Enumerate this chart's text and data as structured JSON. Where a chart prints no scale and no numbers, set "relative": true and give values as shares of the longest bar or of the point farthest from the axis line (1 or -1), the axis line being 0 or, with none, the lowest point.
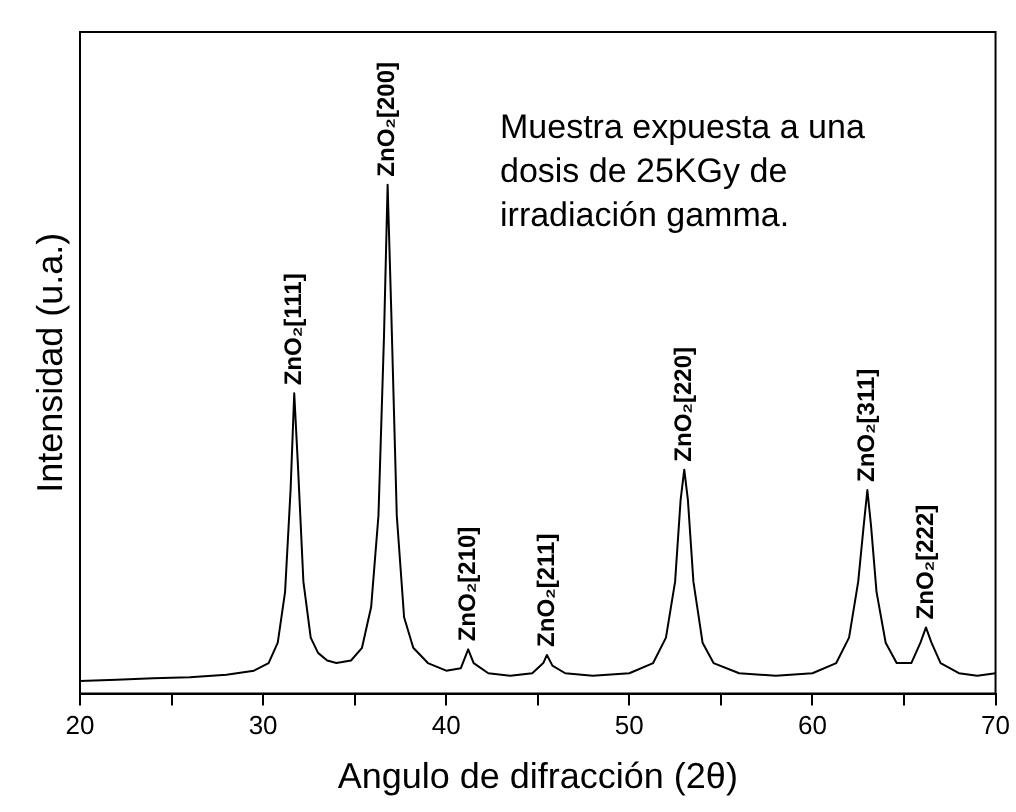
{
  "chart_data": {
    "type": "line",
    "relative": true,
    "xlabel": "Angulo de difracción (2θ)",
    "ylabel": "Intensidad (u.a.)",
    "xlim": [
      20,
      70
    ],
    "xticks": [
      20,
      {
        "value": 25,
        "label": null
      },
      30,
      {
        "value": 35,
        "label": null
      },
      40,
      {
        "value": 45,
        "label": null
      },
      50,
      {
        "value": 55,
        "label": null
      },
      60,
      {
        "value": 65,
        "label": null
      },
      70
    ],
    "grid": false,
    "legend": false,
    "marker": "none",
    "line_style": "solid",
    "series": [
      {
        "color": "#000000",
        "x": [
          20,
          22,
          24,
          26,
          28,
          29.5,
          30.3,
          30.8,
          31.2,
          31.5,
          31.7,
          31.9,
          32.2,
          32.6,
          33,
          33.5,
          34,
          34.8,
          35.4,
          35.9,
          36.3,
          36.6,
          36.8,
          37.0,
          37.3,
          37.7,
          38.2,
          39,
          40,
          40.8,
          41.2,
          41.5,
          42.3,
          43.5,
          44.7,
          45.3,
          45.5,
          45.8,
          46.5,
          48,
          50,
          51.3,
          52,
          52.5,
          52.8,
          53.0,
          53.2,
          53.5,
          54,
          54.6,
          56,
          58,
          60,
          61.3,
          62,
          62.5,
          62.8,
          63.0,
          63.2,
          63.5,
          64,
          64.6,
          65.4,
          65.9,
          66.2,
          66.5,
          67,
          68,
          69,
          70
        ],
        "values": [
          0.025,
          0.027,
          0.03,
          0.032,
          0.037,
          0.045,
          0.06,
          0.1,
          0.2,
          0.4,
          0.59,
          0.45,
          0.22,
          0.11,
          0.08,
          0.065,
          0.06,
          0.065,
          0.09,
          0.17,
          0.35,
          0.7,
          1,
          0.75,
          0.35,
          0.15,
          0.09,
          0.06,
          0.045,
          0.05,
          0.087,
          0.06,
          0.04,
          0.035,
          0.04,
          0.06,
          0.076,
          0.055,
          0.04,
          0.035,
          0.04,
          0.06,
          0.11,
          0.22,
          0.38,
          0.44,
          0.38,
          0.22,
          0.1,
          0.06,
          0.04,
          0.035,
          0.04,
          0.06,
          0.11,
          0.22,
          0.33,
          0.4,
          0.33,
          0.2,
          0.1,
          0.06,
          0.06,
          0.1,
          0.13,
          0.1,
          0.06,
          0.04,
          0.035,
          0.04
        ]
      }
    ],
    "annotations": [
      {
        "text": "ZnO₂[111]",
        "x": 31.7,
        "y": 0.59
      },
      {
        "text": "ZnO₂[200]",
        "x": 36.8,
        "y": 1
      },
      {
        "text": "ZnO₂[210]",
        "x": 41.2,
        "y": 0.087
      },
      {
        "text": "ZnO₂[211]",
        "x": 45.5,
        "y": 0.076
      },
      {
        "text": "ZnO₂[220]",
        "x": 53.0,
        "y": 0.44
      },
      {
        "text": "ZnO₂[311]",
        "x": 63.0,
        "y": 0.4
      },
      {
        "text": "ZnO₂[222]",
        "x": 66.2,
        "y": 0.13
      },
      "Muestra expuesta a una dosis de 25KGy de irradiación gamma."
    ]
  }
}
